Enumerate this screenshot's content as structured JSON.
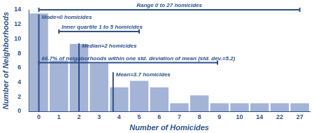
{
  "chart_data": {
    "type": "bar",
    "x_label": "Number of Homicides",
    "y_label": "Number of Neighborhoods",
    "categories": [
      "0",
      "1",
      "2",
      "3",
      "4",
      "5",
      "6",
      "7",
      "8",
      "9",
      "10",
      "14",
      "22",
      "27"
    ],
    "values": [
      13.5,
      7,
      9.3,
      6.6,
      3.3,
      4.2,
      3.3,
      1.1,
      2.2,
      1.1,
      1.1,
      1.1,
      1.1,
      1.1
    ],
    "color": "#a3b4d6",
    "ylim": [
      0,
      14
    ],
    "yticks": [
      0,
      2,
      4,
      6,
      8,
      10,
      12,
      14
    ],
    "grid": false,
    "annotations": [
      {
        "text": "Range 0 to 27 homicides",
        "x": [
          0,
          27
        ],
        "y": 14
      },
      {
        "text": "Mode=0 homicides",
        "x": 0,
        "y": 13
      },
      {
        "text": "Inner quartile 1 to 5 homicides",
        "x": [
          1,
          5
        ],
        "y": 11
      },
      {
        "text": "Median=2 homicides",
        "x": 2,
        "y": 9
      },
      {
        "text": "66.7% of neighborhoods within one std. deviation of mean (std. dev.=5.2)",
        "x": [
          0,
          8.9
        ],
        "y": 6.7
      },
      {
        "text": "Mean=3.7 homicides",
        "x": 3.7,
        "y": 5
      }
    ]
  }
}
